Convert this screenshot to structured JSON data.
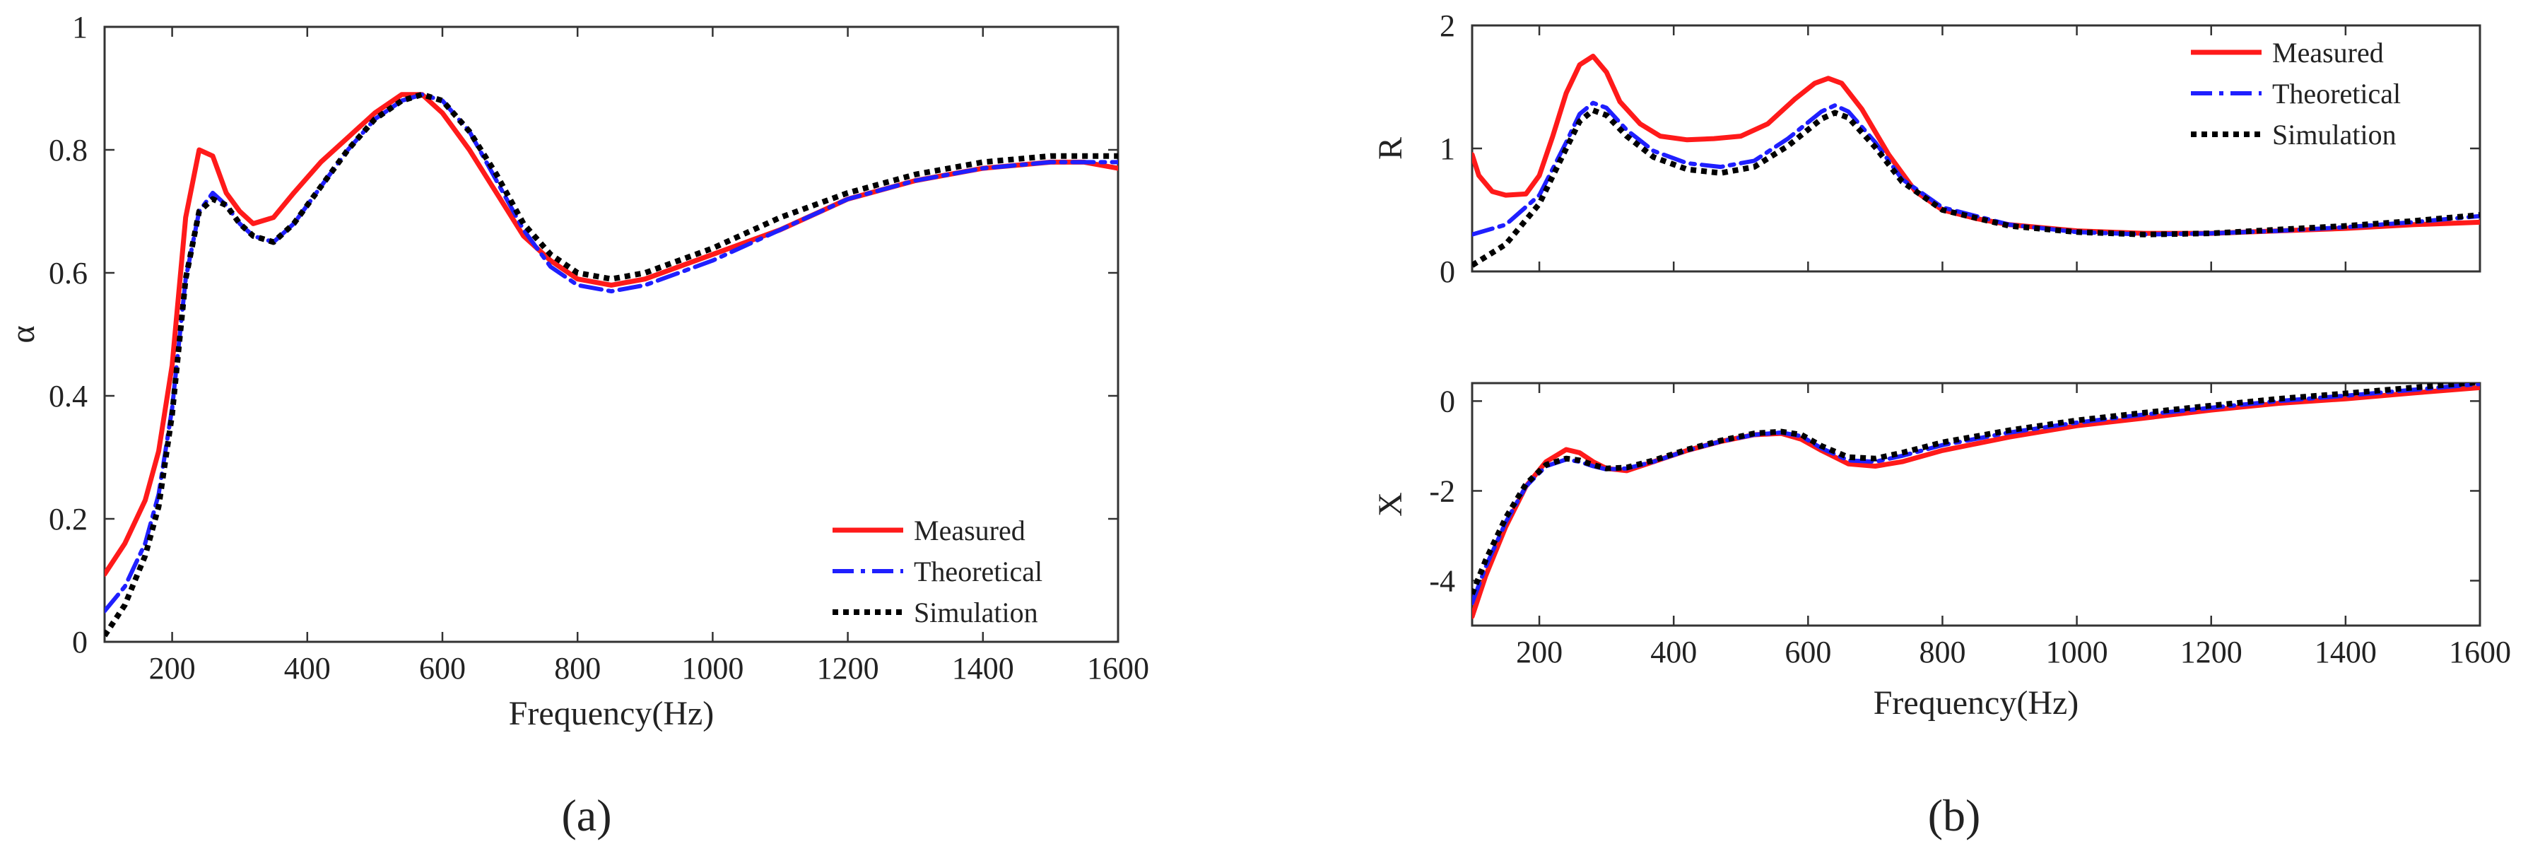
{
  "figure_labels": {
    "a": "(a)",
    "b": "(b)"
  },
  "chart_data": [
    {
      "type": "line",
      "panel": "a",
      "title": "",
      "xlabel": "Frequency(Hz)",
      "ylabel": "α",
      "xlim": [
        100,
        1600
      ],
      "ylim": [
        0,
        1
      ],
      "xticks": [
        200,
        400,
        600,
        800,
        1000,
        1200,
        1400,
        1600
      ],
      "yticks": [
        0,
        0.2,
        0.4,
        0.6,
        0.8,
        1
      ],
      "ytick_labels": [
        "0",
        "0.2",
        "0.4",
        "0.6",
        "0.8",
        "1"
      ],
      "legend": "bottom-right",
      "series": [
        {
          "name": "Measured",
          "color": "#ff1a1a",
          "dash": "solid",
          "x": [
            100,
            130,
            160,
            180,
            200,
            220,
            240,
            260,
            280,
            300,
            320,
            350,
            380,
            420,
            460,
            500,
            540,
            570,
            600,
            640,
            680,
            720,
            760,
            800,
            850,
            900,
            1000,
            1100,
            1200,
            1300,
            1400,
            1500,
            1550,
            1600
          ],
          "y": [
            0.11,
            0.16,
            0.23,
            0.31,
            0.45,
            0.69,
            0.8,
            0.79,
            0.73,
            0.7,
            0.68,
            0.69,
            0.73,
            0.78,
            0.82,
            0.86,
            0.89,
            0.89,
            0.86,
            0.8,
            0.73,
            0.66,
            0.62,
            0.59,
            0.58,
            0.59,
            0.63,
            0.67,
            0.72,
            0.75,
            0.77,
            0.78,
            0.78,
            0.77
          ]
        },
        {
          "name": "Theoretical",
          "color": "#1f1fff",
          "dash": "dashdot",
          "x": [
            100,
            130,
            160,
            180,
            200,
            220,
            240,
            260,
            280,
            300,
            320,
            350,
            380,
            420,
            460,
            500,
            540,
            570,
            600,
            640,
            680,
            720,
            760,
            800,
            850,
            900,
            1000,
            1100,
            1200,
            1300,
            1400,
            1500,
            1550,
            1600
          ],
          "y": [
            0.05,
            0.09,
            0.16,
            0.24,
            0.38,
            0.59,
            0.7,
            0.73,
            0.71,
            0.68,
            0.66,
            0.65,
            0.68,
            0.74,
            0.8,
            0.85,
            0.88,
            0.89,
            0.88,
            0.83,
            0.75,
            0.67,
            0.61,
            0.58,
            0.57,
            0.58,
            0.62,
            0.67,
            0.72,
            0.75,
            0.77,
            0.78,
            0.78,
            0.78
          ]
        },
        {
          "name": "Simulation",
          "color": "#000000",
          "dash": "dotted",
          "x": [
            100,
            130,
            160,
            180,
            200,
            220,
            240,
            260,
            280,
            300,
            320,
            350,
            380,
            420,
            460,
            500,
            540,
            570,
            600,
            640,
            680,
            720,
            760,
            800,
            850,
            900,
            1000,
            1100,
            1200,
            1300,
            1400,
            1500,
            1550,
            1600
          ],
          "y": [
            0.01,
            0.06,
            0.14,
            0.22,
            0.37,
            0.59,
            0.7,
            0.72,
            0.71,
            0.68,
            0.66,
            0.65,
            0.68,
            0.74,
            0.8,
            0.85,
            0.88,
            0.89,
            0.88,
            0.83,
            0.76,
            0.68,
            0.63,
            0.6,
            0.59,
            0.6,
            0.64,
            0.69,
            0.73,
            0.76,
            0.78,
            0.79,
            0.79,
            0.79
          ]
        }
      ]
    },
    {
      "type": "line",
      "panel": "b-top",
      "title": "",
      "xlabel": "",
      "ylabel": "R",
      "xlim": [
        100,
        1600
      ],
      "ylim": [
        0,
        2
      ],
      "xticks": [
        200,
        400,
        600,
        800,
        1000,
        1200,
        1400,
        1600
      ],
      "yticks": [
        0,
        1,
        2
      ],
      "ytick_labels": [
        "0",
        "1",
        "2"
      ],
      "legend": "top-right",
      "series": [
        {
          "name": "Measured",
          "color": "#ff1a1a",
          "dash": "solid",
          "x": [
            100,
            110,
            130,
            150,
            180,
            200,
            220,
            240,
            260,
            280,
            300,
            320,
            350,
            380,
            420,
            460,
            500,
            540,
            580,
            610,
            630,
            650,
            680,
            720,
            760,
            800,
            850,
            900,
            1000,
            1100,
            1200,
            1300,
            1400,
            1500,
            1600
          ],
          "y": [
            0.95,
            0.78,
            0.65,
            0.62,
            0.63,
            0.78,
            1.1,
            1.45,
            1.68,
            1.75,
            1.62,
            1.38,
            1.2,
            1.1,
            1.07,
            1.08,
            1.1,
            1.2,
            1.4,
            1.53,
            1.57,
            1.53,
            1.32,
            0.95,
            0.65,
            0.5,
            0.43,
            0.38,
            0.33,
            0.31,
            0.31,
            0.33,
            0.35,
            0.38,
            0.4
          ]
        },
        {
          "name": "Theoretical",
          "color": "#1f1fff",
          "dash": "dashdot",
          "x": [
            100,
            150,
            200,
            240,
            260,
            280,
            300,
            330,
            370,
            420,
            470,
            520,
            570,
            620,
            640,
            660,
            700,
            740,
            800,
            900,
            1000,
            1100,
            1200,
            1300,
            1400,
            1500,
            1600
          ],
          "y": [
            0.3,
            0.38,
            0.62,
            1.05,
            1.28,
            1.37,
            1.33,
            1.15,
            0.98,
            0.88,
            0.85,
            0.9,
            1.08,
            1.3,
            1.35,
            1.3,
            1.05,
            0.75,
            0.52,
            0.38,
            0.32,
            0.3,
            0.31,
            0.33,
            0.36,
            0.4,
            0.45
          ]
        },
        {
          "name": "Simulation",
          "color": "#000000",
          "dash": "dotted",
          "x": [
            100,
            150,
            200,
            240,
            260,
            280,
            300,
            330,
            370,
            420,
            470,
            520,
            570,
            620,
            640,
            660,
            700,
            740,
            800,
            900,
            1000,
            1100,
            1200,
            1300,
            1400,
            1500,
            1600
          ],
          "y": [
            0.05,
            0.22,
            0.55,
            1.0,
            1.22,
            1.31,
            1.27,
            1.1,
            0.93,
            0.83,
            0.8,
            0.85,
            1.02,
            1.24,
            1.29,
            1.25,
            1.01,
            0.73,
            0.5,
            0.37,
            0.32,
            0.3,
            0.31,
            0.34,
            0.37,
            0.41,
            0.46
          ]
        }
      ]
    },
    {
      "type": "line",
      "panel": "b-bottom",
      "title": "",
      "xlabel": "Frequency(Hz)",
      "ylabel": "X",
      "xlim": [
        100,
        1600
      ],
      "ylim": [
        -5,
        0.4
      ],
      "xticks": [
        200,
        400,
        600,
        800,
        1000,
        1200,
        1400,
        1600
      ],
      "yticks": [
        -4,
        -2,
        0
      ],
      "ytick_labels": [
        "-4",
        "-2",
        "0"
      ],
      "legend": "none",
      "series": [
        {
          "name": "Measured",
          "color": "#ff1a1a",
          "dash": "solid",
          "x": [
            100,
            120,
            150,
            180,
            210,
            240,
            260,
            280,
            300,
            330,
            370,
            420,
            470,
            520,
            560,
            590,
            620,
            660,
            700,
            740,
            800,
            900,
            1000,
            1100,
            1200,
            1300,
            1400,
            1500,
            1600
          ],
          "y": [
            -4.8,
            -3.9,
            -2.8,
            -1.9,
            -1.35,
            -1.08,
            -1.15,
            -1.35,
            -1.5,
            -1.55,
            -1.35,
            -1.1,
            -0.9,
            -0.75,
            -0.72,
            -0.85,
            -1.1,
            -1.4,
            -1.45,
            -1.35,
            -1.1,
            -0.8,
            -0.55,
            -0.38,
            -0.2,
            -0.05,
            0.05,
            0.18,
            0.3
          ]
        },
        {
          "name": "Theoretical",
          "color": "#1f1fff",
          "dash": "dashdot",
          "x": [
            100,
            120,
            150,
            180,
            210,
            240,
            260,
            280,
            300,
            330,
            370,
            420,
            470,
            520,
            560,
            590,
            620,
            660,
            700,
            740,
            800,
            900,
            1000,
            1100,
            1200,
            1300,
            1400,
            1500,
            1600
          ],
          "y": [
            -4.5,
            -3.7,
            -2.7,
            -1.9,
            -1.45,
            -1.3,
            -1.35,
            -1.45,
            -1.52,
            -1.5,
            -1.35,
            -1.1,
            -0.9,
            -0.75,
            -0.7,
            -0.78,
            -1.05,
            -1.32,
            -1.35,
            -1.22,
            -0.98,
            -0.7,
            -0.48,
            -0.3,
            -0.15,
            0.0,
            0.12,
            0.25,
            0.38
          ]
        },
        {
          "name": "Simulation",
          "color": "#000000",
          "dash": "dotted",
          "x": [
            100,
            120,
            150,
            180,
            210,
            240,
            260,
            280,
            300,
            330,
            370,
            420,
            470,
            520,
            560,
            590,
            620,
            660,
            700,
            740,
            800,
            900,
            1000,
            1100,
            1200,
            1300,
            1400,
            1500,
            1600
          ],
          "y": [
            -4.3,
            -3.55,
            -2.6,
            -1.85,
            -1.42,
            -1.28,
            -1.32,
            -1.42,
            -1.5,
            -1.48,
            -1.32,
            -1.08,
            -0.88,
            -0.72,
            -0.68,
            -0.75,
            -1.0,
            -1.25,
            -1.28,
            -1.15,
            -0.92,
            -0.65,
            -0.43,
            -0.26,
            -0.1,
            0.05,
            0.17,
            0.3,
            0.42
          ]
        }
      ]
    }
  ]
}
